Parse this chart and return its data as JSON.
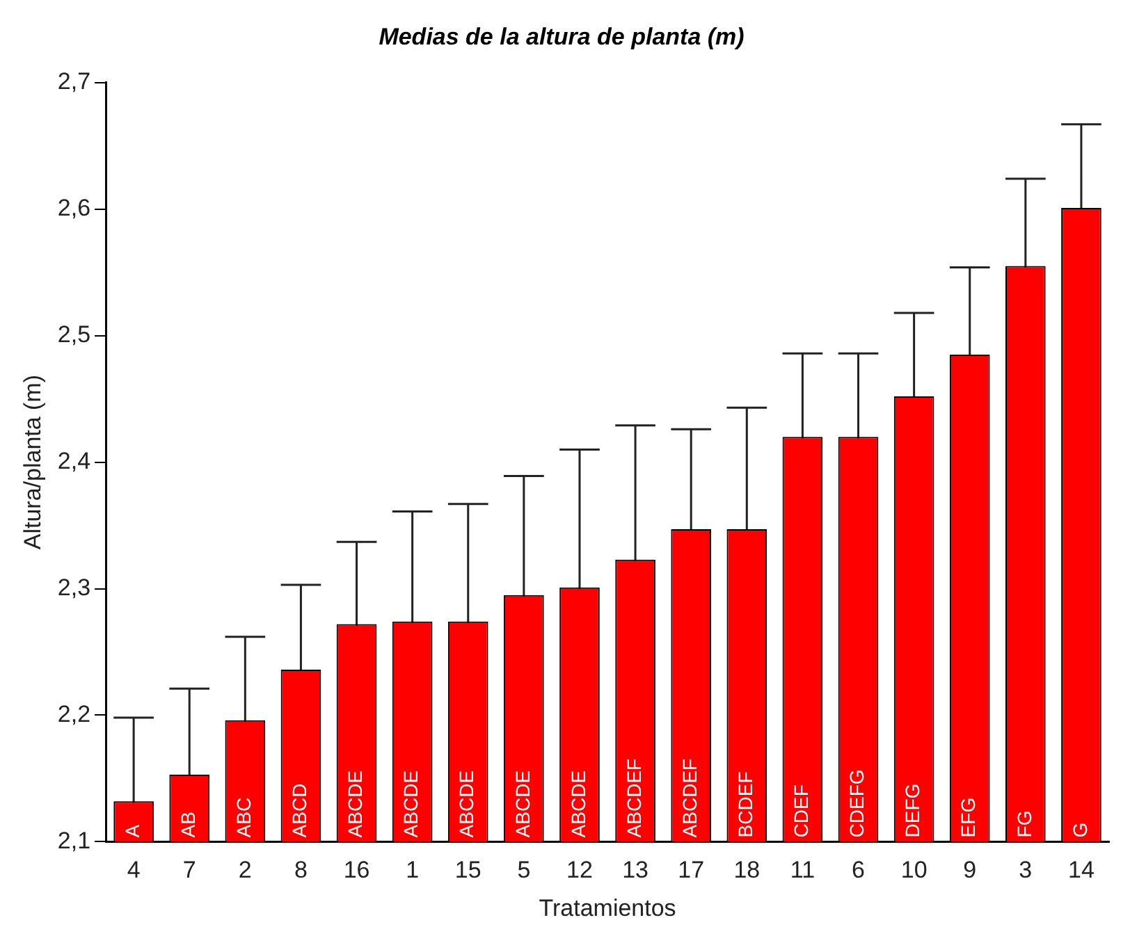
{
  "chart_data": {
    "type": "bar",
    "title": "Medias de la altura de planta (m)",
    "xlabel": "Tratamientos",
    "ylabel": "Altura/planta (m)",
    "categories": [
      "4",
      "7",
      "2",
      "8",
      "16",
      "1",
      "15",
      "5",
      "12",
      "13",
      "17",
      "18",
      "11",
      "6",
      "10",
      "9",
      "3",
      "14"
    ],
    "values": [
      2.132,
      2.153,
      2.196,
      2.236,
      2.272,
      2.274,
      2.274,
      2.295,
      2.301,
      2.323,
      2.347,
      2.347,
      2.42,
      2.42,
      2.452,
      2.485,
      2.555,
      2.601
    ],
    "errors": [
      0.066,
      0.068,
      0.066,
      0.067,
      0.065,
      0.087,
      0.093,
      0.094,
      0.109,
      0.106,
      0.079,
      0.096,
      0.066,
      0.066,
      0.066,
      0.069,
      0.069,
      0.066
    ],
    "value_labels": [
      "A",
      "AB",
      "ABC",
      "ABCD",
      "ABCDE",
      "ABCDE",
      "ABCDE",
      "ABCDE",
      "ABCDE",
      "ABCDEF",
      "ABCDEF",
      "BCDEF",
      "CDEF",
      "CDEFG",
      "DEFG",
      "EFG",
      "FG",
      "G"
    ],
    "color": "#ff0000",
    "ylim": [
      2.1,
      2.7
    ],
    "yticks": [
      {
        "value": 2.1,
        "label": "2,1"
      },
      {
        "value": 2.2,
        "label": "2,2"
      },
      {
        "value": 2.3,
        "label": "2,3"
      },
      {
        "value": 2.4,
        "label": "2,4"
      },
      {
        "value": 2.5,
        "label": "2,5"
      },
      {
        "value": 2.6,
        "label": "2,6"
      },
      {
        "value": 2.7,
        "label": "2,7"
      }
    ],
    "grid": false,
    "legend": false
  }
}
